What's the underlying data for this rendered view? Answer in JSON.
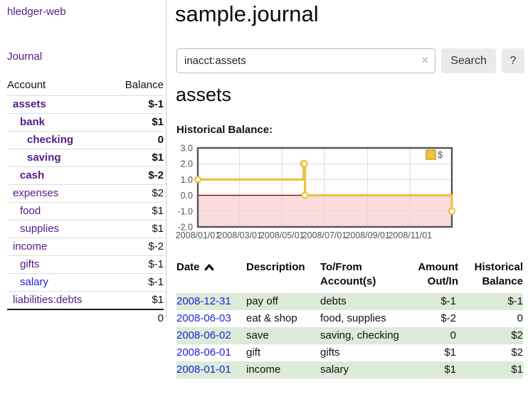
{
  "app": {
    "brand": "hledger-web"
  },
  "nav": {
    "journal": "Journal"
  },
  "colors": {
    "link_purple": "#551A8B",
    "link_blue": "#2222DD",
    "neg_strong": "#A40000",
    "neg_muted": "#C17F7F",
    "stripe_green": "#DBEBD7",
    "chart_line": "#EDC240",
    "chart_negative_fill": "#FADCDC",
    "chart_zero_line": "#9A0000"
  },
  "sidebar": {
    "headers": {
      "account": "Account",
      "balance": "Balance"
    },
    "accounts": [
      {
        "name": "assets",
        "depth": 1,
        "bold": true,
        "link": "purple",
        "balance": "$-1",
        "balance_class": "neg-strong"
      },
      {
        "name": "bank",
        "depth": 2,
        "bold": true,
        "link": "purple",
        "balance": "$1",
        "balance_class": ""
      },
      {
        "name": "checking",
        "depth": 3,
        "bold": true,
        "link": "purple",
        "balance": "0",
        "balance_class": ""
      },
      {
        "name": "saving",
        "depth": 3,
        "bold": true,
        "link": "purple",
        "balance": "$1",
        "balance_class": ""
      },
      {
        "name": "cash",
        "depth": 2,
        "bold": true,
        "link": "purple",
        "balance": "$-2",
        "balance_class": "neg-strong"
      },
      {
        "name": "expenses",
        "depth": 1,
        "bold": false,
        "link": "purple",
        "balance": "$2",
        "balance_class": ""
      },
      {
        "name": "food",
        "depth": 2,
        "bold": false,
        "link": "purple",
        "balance": "$1",
        "balance_class": ""
      },
      {
        "name": "supplies",
        "depth": 2,
        "bold": false,
        "link": "purple",
        "balance": "$1",
        "balance_class": ""
      },
      {
        "name": "income",
        "depth": 1,
        "bold": false,
        "link": "purple",
        "balance": "$-2",
        "balance_class": "neg-muted"
      },
      {
        "name": "gifts",
        "depth": 2,
        "bold": false,
        "link": "purple",
        "balance": "$-1",
        "balance_class": "neg-muted"
      },
      {
        "name": "salary",
        "depth": 2,
        "bold": false,
        "link": "blue",
        "balance": "$-1",
        "balance_class": "neg-muted"
      },
      {
        "name": "liabilities:debts",
        "depth": 1,
        "bold": false,
        "link": "purple",
        "balance": "$1",
        "balance_class": ""
      }
    ],
    "total": "0"
  },
  "header": {
    "title": "sample.journal"
  },
  "search": {
    "query": "inacct:assets",
    "clear_label": "×",
    "button": "Search",
    "help": "?"
  },
  "account_page": {
    "heading": "assets",
    "chart_title": "Historical Balance:"
  },
  "chart_data": {
    "type": "line",
    "steps": true,
    "title": "Historical Balance",
    "legend": [
      {
        "label": "$",
        "color": "#EDC240"
      }
    ],
    "legend_position": "top-right",
    "x": [
      "2008-01-01",
      "2008-06-01",
      "2008-06-02",
      "2008-06-03",
      "2008-12-31"
    ],
    "series": [
      {
        "name": "$",
        "values": [
          1,
          2,
          2,
          0,
          -1
        ]
      }
    ],
    "xlim": [
      "2008-01-01",
      "2008-12-31"
    ],
    "ylim": [
      -2,
      3
    ],
    "y_ticks": [
      "3.0",
      "2.0",
      "1.0",
      "0.0",
      "-1.0",
      "-2.0"
    ],
    "y_tick_values": [
      3,
      2,
      1,
      0,
      -1,
      -2
    ],
    "x_ticks": [
      {
        "date": "2008-01-01",
        "label": "2008/01/01"
      },
      {
        "date": "2008-03-01",
        "label": "2008/03/01"
      },
      {
        "date": "2008-05-01",
        "label": "2008/05/01"
      },
      {
        "date": "2008-07-01",
        "label": "2008/07/01"
      },
      {
        "date": "2008-09-01",
        "label": "2008/09/01"
      },
      {
        "date": "2008-11-01",
        "label": "2008/11/01"
      }
    ],
    "grid": true,
    "negative_region_shaded": true
  },
  "register": {
    "headers": {
      "date": "Date",
      "description": "Description",
      "accounts": "To/From Account(s)",
      "amount": "Amount Out/In",
      "balance": "Historical Balance"
    },
    "rows": [
      {
        "date": "2008-12-31",
        "description": "pay off",
        "accounts": "debts",
        "amount": "$-1",
        "amount_neg": true,
        "balance": "$-1",
        "balance_neg": true
      },
      {
        "date": "2008-06-03",
        "description": "eat & shop",
        "accounts": "food, supplies",
        "amount": "$-2",
        "amount_neg": true,
        "balance": "0",
        "balance_neg": false
      },
      {
        "date": "2008-06-02",
        "description": "save",
        "accounts": "saving, checking",
        "amount": "0",
        "amount_neg": false,
        "balance": "$2",
        "balance_neg": false
      },
      {
        "date": "2008-06-01",
        "description": "gift",
        "accounts": "gifts",
        "amount": "$1",
        "amount_neg": false,
        "balance": "$2",
        "balance_neg": false
      },
      {
        "date": "2008-01-01",
        "description": "income",
        "accounts": "salary",
        "amount": "$1",
        "amount_neg": false,
        "balance": "$1",
        "balance_neg": false
      }
    ]
  }
}
